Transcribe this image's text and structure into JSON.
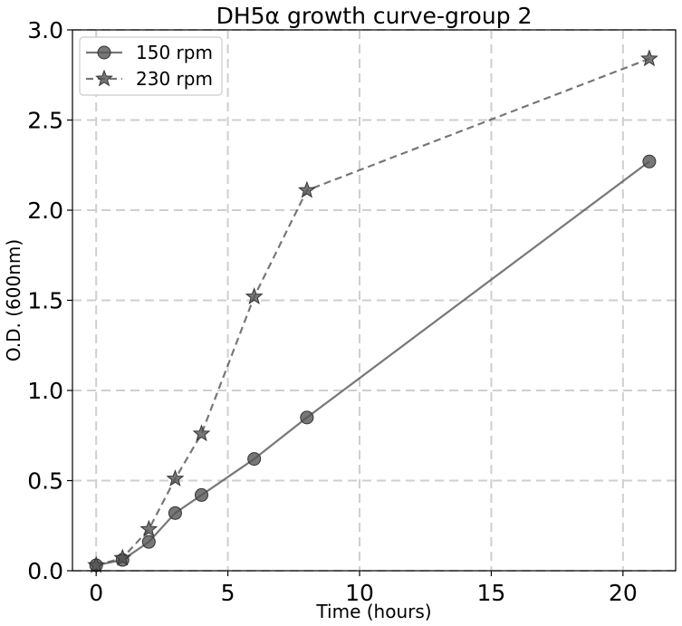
{
  "chart_data": {
    "type": "line",
    "title": "DH5α growth curve-group 2",
    "xlabel": "Time (hours)",
    "ylabel": "O.D. (600nm)",
    "xlim": [
      -0.9,
      22
    ],
    "ylim": [
      0,
      3.0
    ],
    "xticks": [
      0,
      5,
      10,
      15,
      20
    ],
    "yticks": [
      0.0,
      0.5,
      1.0,
      1.5,
      2.0,
      2.5,
      3.0
    ],
    "xtick_labels": [
      "0",
      "5",
      "10",
      "15",
      "20"
    ],
    "ytick_labels": [
      "0.0",
      "0.5",
      "1.0",
      "1.5",
      "2.0",
      "2.5",
      "3.0"
    ],
    "grid": true,
    "legend_position": "top-left",
    "series": [
      {
        "name": "150 rpm",
        "marker": "circle",
        "line_style": "solid",
        "color": "#555555",
        "x": [
          0,
          1,
          2,
          3,
          4,
          6,
          8,
          21
        ],
        "y": [
          0.03,
          0.06,
          0.16,
          0.32,
          0.42,
          0.62,
          0.85,
          2.27
        ]
      },
      {
        "name": "230 rpm",
        "marker": "star",
        "line_style": "dashed",
        "color": "#555555",
        "x": [
          0,
          1,
          2,
          3,
          4,
          6,
          8,
          21
        ],
        "y": [
          0.03,
          0.07,
          0.23,
          0.51,
          0.76,
          1.52,
          2.11,
          2.84
        ]
      }
    ]
  }
}
